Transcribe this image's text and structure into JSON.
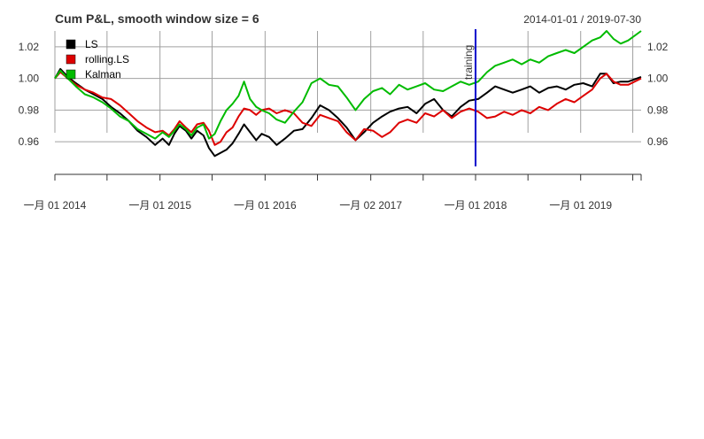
{
  "chart_data": {
    "type": "line",
    "title": "Cum P&L, smooth window size = 6",
    "date_range": "2014-01-01 / 2019-07-30",
    "x_start": "2014-01-01",
    "x_end": "2019-07-30",
    "ylim": [
      0.945,
      1.03
    ],
    "y_ticks": [
      0.96,
      0.98,
      1.0,
      1.02
    ],
    "y_tick_labels": [
      "0.96",
      "0.98",
      "1.00",
      "1.02"
    ],
    "x_tick_labels": [
      "一月 01 2014",
      "一月 01 2015",
      "一月 01 2016",
      "一月 02 2017",
      "一月 01 2018",
      "一月 01 2019"
    ],
    "x_tick_dates": [
      "2014-01-01",
      "2015-01-01",
      "2016-01-01",
      "2017-01-02",
      "2018-01-01",
      "2019-01-01"
    ],
    "minor_tick_dates": [
      "2014-07-01",
      "2015-07-01",
      "2016-07-01",
      "2017-07-03",
      "2018-07-02",
      "2019-07-01"
    ],
    "grid": true,
    "legend_position": "top-left",
    "annotation": {
      "date": "2018-01-01",
      "label": "training",
      "color": "#0000cc"
    },
    "series": [
      {
        "name": "LS",
        "color": "#000000",
        "points": [
          [
            "2014-01-01",
            1.0
          ],
          [
            "2014-01-20",
            1.006
          ],
          [
            "2014-02-15",
            1.001
          ],
          [
            "2014-03-15",
            0.997
          ],
          [
            "2014-04-15",
            0.993
          ],
          [
            "2014-05-15",
            0.99
          ],
          [
            "2014-06-15",
            0.987
          ],
          [
            "2014-07-15",
            0.982
          ],
          [
            "2014-08-15",
            0.978
          ],
          [
            "2014-09-15",
            0.973
          ],
          [
            "2014-10-15",
            0.967
          ],
          [
            "2014-11-15",
            0.963
          ],
          [
            "2014-12-15",
            0.958
          ],
          [
            "2015-01-10",
            0.962
          ],
          [
            "2015-02-01",
            0.958
          ],
          [
            "2015-02-20",
            0.965
          ],
          [
            "2015-03-10",
            0.97
          ],
          [
            "2015-04-01",
            0.967
          ],
          [
            "2015-04-20",
            0.962
          ],
          [
            "2015-05-10",
            0.967
          ],
          [
            "2015-06-01",
            0.964
          ],
          [
            "2015-06-20",
            0.956
          ],
          [
            "2015-07-10",
            0.951
          ],
          [
            "2015-07-30",
            0.953
          ],
          [
            "2015-08-20",
            0.955
          ],
          [
            "2015-09-10",
            0.959
          ],
          [
            "2015-10-01",
            0.965
          ],
          [
            "2015-10-20",
            0.971
          ],
          [
            "2015-11-10",
            0.966
          ],
          [
            "2015-12-01",
            0.961
          ],
          [
            "2015-12-20",
            0.965
          ],
          [
            "2016-01-15",
            0.963
          ],
          [
            "2016-02-10",
            0.958
          ],
          [
            "2016-03-10",
            0.962
          ],
          [
            "2016-04-10",
            0.967
          ],
          [
            "2016-05-10",
            0.968
          ],
          [
            "2016-06-10",
            0.975
          ],
          [
            "2016-07-10",
            0.983
          ],
          [
            "2016-08-10",
            0.98
          ],
          [
            "2016-09-10",
            0.975
          ],
          [
            "2016-10-10",
            0.969
          ],
          [
            "2016-11-10",
            0.961
          ],
          [
            "2016-12-10",
            0.966
          ],
          [
            "2017-01-10",
            0.972
          ],
          [
            "2017-02-10",
            0.976
          ],
          [
            "2017-03-10",
            0.979
          ],
          [
            "2017-04-10",
            0.981
          ],
          [
            "2017-05-10",
            0.982
          ],
          [
            "2017-06-10",
            0.978
          ],
          [
            "2017-07-10",
            0.984
          ],
          [
            "2017-08-10",
            0.987
          ],
          [
            "2017-09-10",
            0.98
          ],
          [
            "2017-10-10",
            0.976
          ],
          [
            "2017-11-10",
            0.982
          ],
          [
            "2017-12-10",
            0.986
          ],
          [
            "2018-01-10",
            0.987
          ],
          [
            "2018-02-10",
            0.991
          ],
          [
            "2018-03-10",
            0.995
          ],
          [
            "2018-04-10",
            0.993
          ],
          [
            "2018-05-10",
            0.991
          ],
          [
            "2018-06-10",
            0.993
          ],
          [
            "2018-07-10",
            0.995
          ],
          [
            "2018-08-10",
            0.991
          ],
          [
            "2018-09-10",
            0.994
          ],
          [
            "2018-10-10",
            0.995
          ],
          [
            "2018-11-10",
            0.993
          ],
          [
            "2018-12-10",
            0.996
          ],
          [
            "2019-01-10",
            0.997
          ],
          [
            "2019-02-10",
            0.995
          ],
          [
            "2019-03-10",
            1.003
          ],
          [
            "2019-04-01",
            1.003
          ],
          [
            "2019-04-25",
            0.997
          ],
          [
            "2019-05-20",
            0.998
          ],
          [
            "2019-06-15",
            0.998
          ],
          [
            "2019-07-30",
            1.001
          ]
        ]
      },
      {
        "name": "rolling.LS",
        "color": "#dd0000",
        "points": [
          [
            "2014-01-01",
            1.0
          ],
          [
            "2014-01-20",
            1.004
          ],
          [
            "2014-02-15",
            1.0
          ],
          [
            "2014-03-15",
            0.996
          ],
          [
            "2014-04-15",
            0.993
          ],
          [
            "2014-05-15",
            0.991
          ],
          [
            "2014-06-15",
            0.988
          ],
          [
            "2014-07-15",
            0.987
          ],
          [
            "2014-08-15",
            0.983
          ],
          [
            "2014-09-15",
            0.978
          ],
          [
            "2014-10-15",
            0.973
          ],
          [
            "2014-11-15",
            0.969
          ],
          [
            "2014-12-15",
            0.966
          ],
          [
            "2015-01-10",
            0.967
          ],
          [
            "2015-02-01",
            0.964
          ],
          [
            "2015-02-20",
            0.968
          ],
          [
            "2015-03-10",
            0.973
          ],
          [
            "2015-04-01",
            0.969
          ],
          [
            "2015-04-20",
            0.966
          ],
          [
            "2015-05-10",
            0.971
          ],
          [
            "2015-06-01",
            0.972
          ],
          [
            "2015-06-20",
            0.967
          ],
          [
            "2015-07-10",
            0.958
          ],
          [
            "2015-07-30",
            0.96
          ],
          [
            "2015-08-20",
            0.966
          ],
          [
            "2015-09-10",
            0.969
          ],
          [
            "2015-10-01",
            0.976
          ],
          [
            "2015-10-20",
            0.981
          ],
          [
            "2015-11-10",
            0.98
          ],
          [
            "2015-12-01",
            0.977
          ],
          [
            "2015-12-20",
            0.98
          ],
          [
            "2016-01-15",
            0.981
          ],
          [
            "2016-02-10",
            0.978
          ],
          [
            "2016-03-10",
            0.98
          ],
          [
            "2016-04-10",
            0.978
          ],
          [
            "2016-05-10",
            0.972
          ],
          [
            "2016-06-10",
            0.97
          ],
          [
            "2016-07-10",
            0.977
          ],
          [
            "2016-08-10",
            0.975
          ],
          [
            "2016-09-10",
            0.973
          ],
          [
            "2016-10-10",
            0.966
          ],
          [
            "2016-11-10",
            0.961
          ],
          [
            "2016-12-10",
            0.968
          ],
          [
            "2017-01-10",
            0.967
          ],
          [
            "2017-02-10",
            0.963
          ],
          [
            "2017-03-10",
            0.966
          ],
          [
            "2017-04-10",
            0.972
          ],
          [
            "2017-05-10",
            0.974
          ],
          [
            "2017-06-10",
            0.972
          ],
          [
            "2017-07-10",
            0.978
          ],
          [
            "2017-08-10",
            0.976
          ],
          [
            "2017-09-10",
            0.98
          ],
          [
            "2017-10-10",
            0.975
          ],
          [
            "2017-11-10",
            0.979
          ],
          [
            "2017-12-10",
            0.981
          ],
          [
            "2018-01-10",
            0.979
          ],
          [
            "2018-02-10",
            0.975
          ],
          [
            "2018-03-10",
            0.976
          ],
          [
            "2018-04-10",
            0.979
          ],
          [
            "2018-05-10",
            0.977
          ],
          [
            "2018-06-10",
            0.98
          ],
          [
            "2018-07-10",
            0.978
          ],
          [
            "2018-08-10",
            0.982
          ],
          [
            "2018-09-10",
            0.98
          ],
          [
            "2018-10-10",
            0.984
          ],
          [
            "2018-11-10",
            0.987
          ],
          [
            "2018-12-10",
            0.985
          ],
          [
            "2019-01-10",
            0.989
          ],
          [
            "2019-02-10",
            0.993
          ],
          [
            "2019-03-10",
            1.0
          ],
          [
            "2019-04-01",
            1.003
          ],
          [
            "2019-04-25",
            0.998
          ],
          [
            "2019-05-20",
            0.996
          ],
          [
            "2019-06-15",
            0.996
          ],
          [
            "2019-07-30",
            1.0
          ]
        ]
      },
      {
        "name": "Kalman",
        "color": "#00bb00",
        "points": [
          [
            "2014-01-01",
            1.0
          ],
          [
            "2014-01-20",
            1.005
          ],
          [
            "2014-02-15",
            1.0
          ],
          [
            "2014-03-15",
            0.995
          ],
          [
            "2014-04-15",
            0.99
          ],
          [
            "2014-05-15",
            0.988
          ],
          [
            "2014-06-15",
            0.985
          ],
          [
            "2014-07-15",
            0.981
          ],
          [
            "2014-08-15",
            0.976
          ],
          [
            "2014-09-15",
            0.973
          ],
          [
            "2014-10-15",
            0.968
          ],
          [
            "2014-11-15",
            0.965
          ],
          [
            "2014-12-15",
            0.962
          ],
          [
            "2015-01-10",
            0.966
          ],
          [
            "2015-02-01",
            0.963
          ],
          [
            "2015-02-20",
            0.967
          ],
          [
            "2015-03-10",
            0.971
          ],
          [
            "2015-04-01",
            0.968
          ],
          [
            "2015-04-20",
            0.964
          ],
          [
            "2015-05-10",
            0.969
          ],
          [
            "2015-06-01",
            0.971
          ],
          [
            "2015-06-20",
            0.962
          ],
          [
            "2015-07-10",
            0.965
          ],
          [
            "2015-07-30",
            0.973
          ],
          [
            "2015-08-20",
            0.98
          ],
          [
            "2015-09-10",
            0.984
          ],
          [
            "2015-10-01",
            0.989
          ],
          [
            "2015-10-20",
            0.998
          ],
          [
            "2015-11-10",
            0.987
          ],
          [
            "2015-12-01",
            0.982
          ],
          [
            "2015-12-20",
            0.98
          ],
          [
            "2016-01-15",
            0.978
          ],
          [
            "2016-02-10",
            0.974
          ],
          [
            "2016-03-10",
            0.972
          ],
          [
            "2016-04-10",
            0.979
          ],
          [
            "2016-05-10",
            0.985
          ],
          [
            "2016-06-10",
            0.997
          ],
          [
            "2016-07-10",
            1.0
          ],
          [
            "2016-08-10",
            0.996
          ],
          [
            "2016-09-10",
            0.995
          ],
          [
            "2016-10-10",
            0.988
          ],
          [
            "2016-11-10",
            0.98
          ],
          [
            "2016-12-10",
            0.987
          ],
          [
            "2017-01-10",
            0.992
          ],
          [
            "2017-02-10",
            0.994
          ],
          [
            "2017-03-10",
            0.99
          ],
          [
            "2017-04-10",
            0.996
          ],
          [
            "2017-05-10",
            0.993
          ],
          [
            "2017-06-10",
            0.995
          ],
          [
            "2017-07-10",
            0.997
          ],
          [
            "2017-08-10",
            0.993
          ],
          [
            "2017-09-10",
            0.992
          ],
          [
            "2017-10-10",
            0.995
          ],
          [
            "2017-11-10",
            0.998
          ],
          [
            "2017-12-10",
            0.996
          ],
          [
            "2018-01-10",
            0.998
          ],
          [
            "2018-02-10",
            1.004
          ],
          [
            "2018-03-10",
            1.008
          ],
          [
            "2018-04-10",
            1.01
          ],
          [
            "2018-05-10",
            1.012
          ],
          [
            "2018-06-10",
            1.009
          ],
          [
            "2018-07-10",
            1.012
          ],
          [
            "2018-08-10",
            1.01
          ],
          [
            "2018-09-10",
            1.014
          ],
          [
            "2018-10-10",
            1.016
          ],
          [
            "2018-11-10",
            1.018
          ],
          [
            "2018-12-10",
            1.016
          ],
          [
            "2019-01-10",
            1.02
          ],
          [
            "2019-02-10",
            1.024
          ],
          [
            "2019-03-10",
            1.026
          ],
          [
            "2019-04-01",
            1.03
          ],
          [
            "2019-04-25",
            1.025
          ],
          [
            "2019-05-20",
            1.022
          ],
          [
            "2019-06-15",
            1.024
          ],
          [
            "2019-07-30",
            1.03
          ]
        ]
      }
    ]
  }
}
